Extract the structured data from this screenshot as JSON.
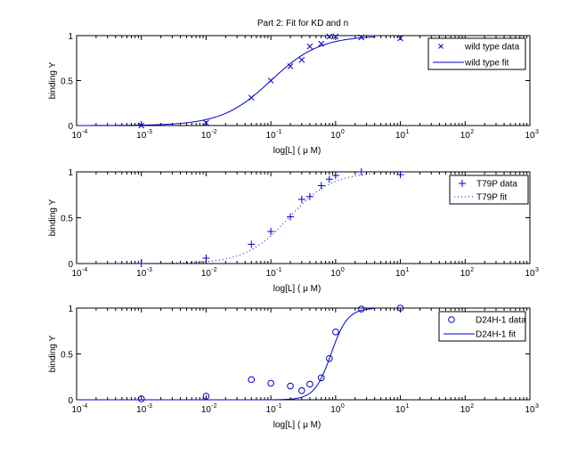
{
  "figure_title": "Part 2: Fit for KD and n",
  "colors": {
    "series": "#0000c8",
    "axes": "#000000",
    "background": "#ffffff"
  },
  "chart_data": [
    {
      "type": "line",
      "title": "Part 2: Fit for KD and n",
      "xlabel": "log[L] ( μ M)",
      "ylabel": "binding Y",
      "xscale": "log",
      "xlim": [
        0.0001,
        1000
      ],
      "ylim": [
        0,
        1
      ],
      "xticks": [
        "10^-4",
        "10^-3",
        "10^-2",
        "10^-1",
        "10^0",
        "10^1",
        "10^2",
        "10^3"
      ],
      "yticks": [
        "0",
        "0.5",
        "1"
      ],
      "legend_position": "top-right",
      "series": [
        {
          "name": "wild type data",
          "kind": "scatter",
          "marker": "x",
          "x": [
            0.001,
            0.01,
            0.05,
            0.1,
            0.2,
            0.3,
            0.4,
            0.6,
            0.8,
            1,
            2.5,
            10
          ],
          "y": [
            0.0,
            0.03,
            0.31,
            0.5,
            0.66,
            0.73,
            0.88,
            0.91,
            0.99,
            0.99,
            0.98,
            0.97
          ]
        },
        {
          "name": "wild type fit",
          "kind": "line",
          "style": "solid",
          "hill": {
            "KD": 0.1,
            "n": 1.15
          },
          "x_range": [
            0.0001,
            4
          ]
        }
      ]
    },
    {
      "type": "line",
      "xlabel": "log[L] ( μ M)",
      "ylabel": "binding Y",
      "xscale": "log",
      "xlim": [
        0.0001,
        1000
      ],
      "ylim": [
        0,
        1
      ],
      "xticks": [
        "10^-4",
        "10^-3",
        "10^-2",
        "10^-1",
        "10^0",
        "10^1",
        "10^2",
        "10^3"
      ],
      "yticks": [
        "0",
        "0.5",
        "1"
      ],
      "legend_position": "top-right",
      "series": [
        {
          "name": "T79P data",
          "kind": "scatter",
          "marker": "+",
          "x": [
            0.001,
            0.01,
            0.05,
            0.1,
            0.2,
            0.3,
            0.4,
            0.6,
            0.8,
            1,
            2.5,
            10
          ],
          "y": [
            0.0,
            0.06,
            0.21,
            0.35,
            0.51,
            0.7,
            0.73,
            0.85,
            0.92,
            0.96,
            1.0,
            0.97
          ]
        },
        {
          "name": "T79P fit",
          "kind": "line",
          "style": "dotted",
          "hill": {
            "KD": 0.19,
            "n": 1.3
          },
          "x_range": [
            0.0001,
            4
          ]
        }
      ]
    },
    {
      "type": "line",
      "xlabel": "log[L] ( μ M)",
      "ylabel": "binding Y",
      "xscale": "log",
      "xlim": [
        0.0001,
        1000
      ],
      "ylim": [
        0,
        1
      ],
      "xticks": [
        "10^-4",
        "10^-3",
        "10^-2",
        "10^-1",
        "10^0",
        "10^1",
        "10^2",
        "10^3"
      ],
      "yticks": [
        "0",
        "0.5",
        "1"
      ],
      "legend_position": "top-right",
      "series": [
        {
          "name": "D24H-1 data",
          "kind": "scatter",
          "marker": "o",
          "x": [
            0.001,
            0.01,
            0.05,
            0.1,
            0.2,
            0.3,
            0.4,
            0.6,
            0.8,
            1,
            2.5,
            10
          ],
          "y": [
            0.01,
            0.04,
            0.22,
            0.18,
            0.15,
            0.1,
            0.17,
            0.24,
            0.45,
            0.74,
            0.99,
            1.0
          ]
        },
        {
          "name": "D24H-1 fit",
          "kind": "line",
          "style": "solid",
          "hill": {
            "KD": 0.85,
            "n": 3.4
          },
          "x_range": [
            0.0001,
            4
          ]
        }
      ]
    }
  ]
}
